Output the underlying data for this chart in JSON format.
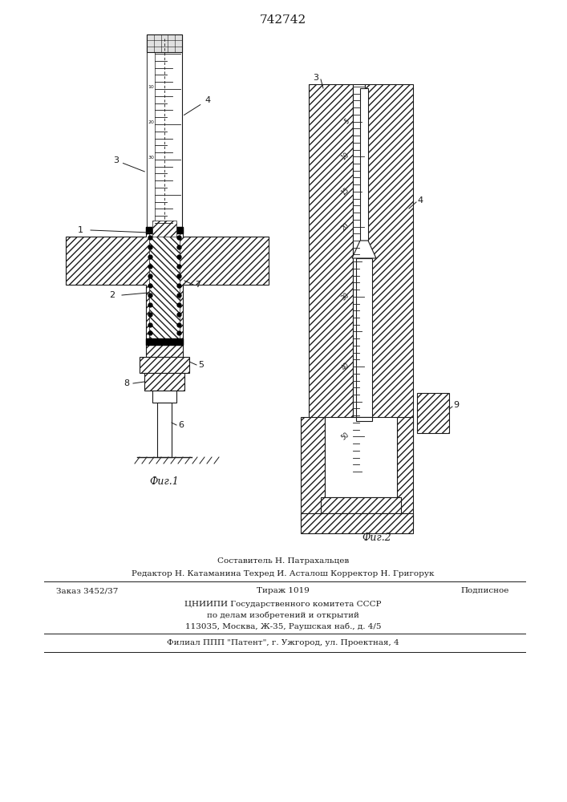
{
  "title": "742742",
  "title_fontsize": 11,
  "fig1_label": "Фиг.1",
  "fig2_label": "Фиг.2",
  "footer_lines": [
    "Составитель Н. Патрахальцев",
    "Редактор Н. Катаманина Техред И. Асталош Корректор Н. Григорук",
    "ЦНИИПИ Государственного комитета СССР",
    "по делам изобретений и открытий",
    "113035, Москва, Ж-35, Раушская наб., д. 4/5",
    "Филиал ППП \"Патент\", г. Ужгород, ул. Проектная, 4"
  ],
  "bg_color": "#ffffff",
  "line_color": "#1a1a1a"
}
